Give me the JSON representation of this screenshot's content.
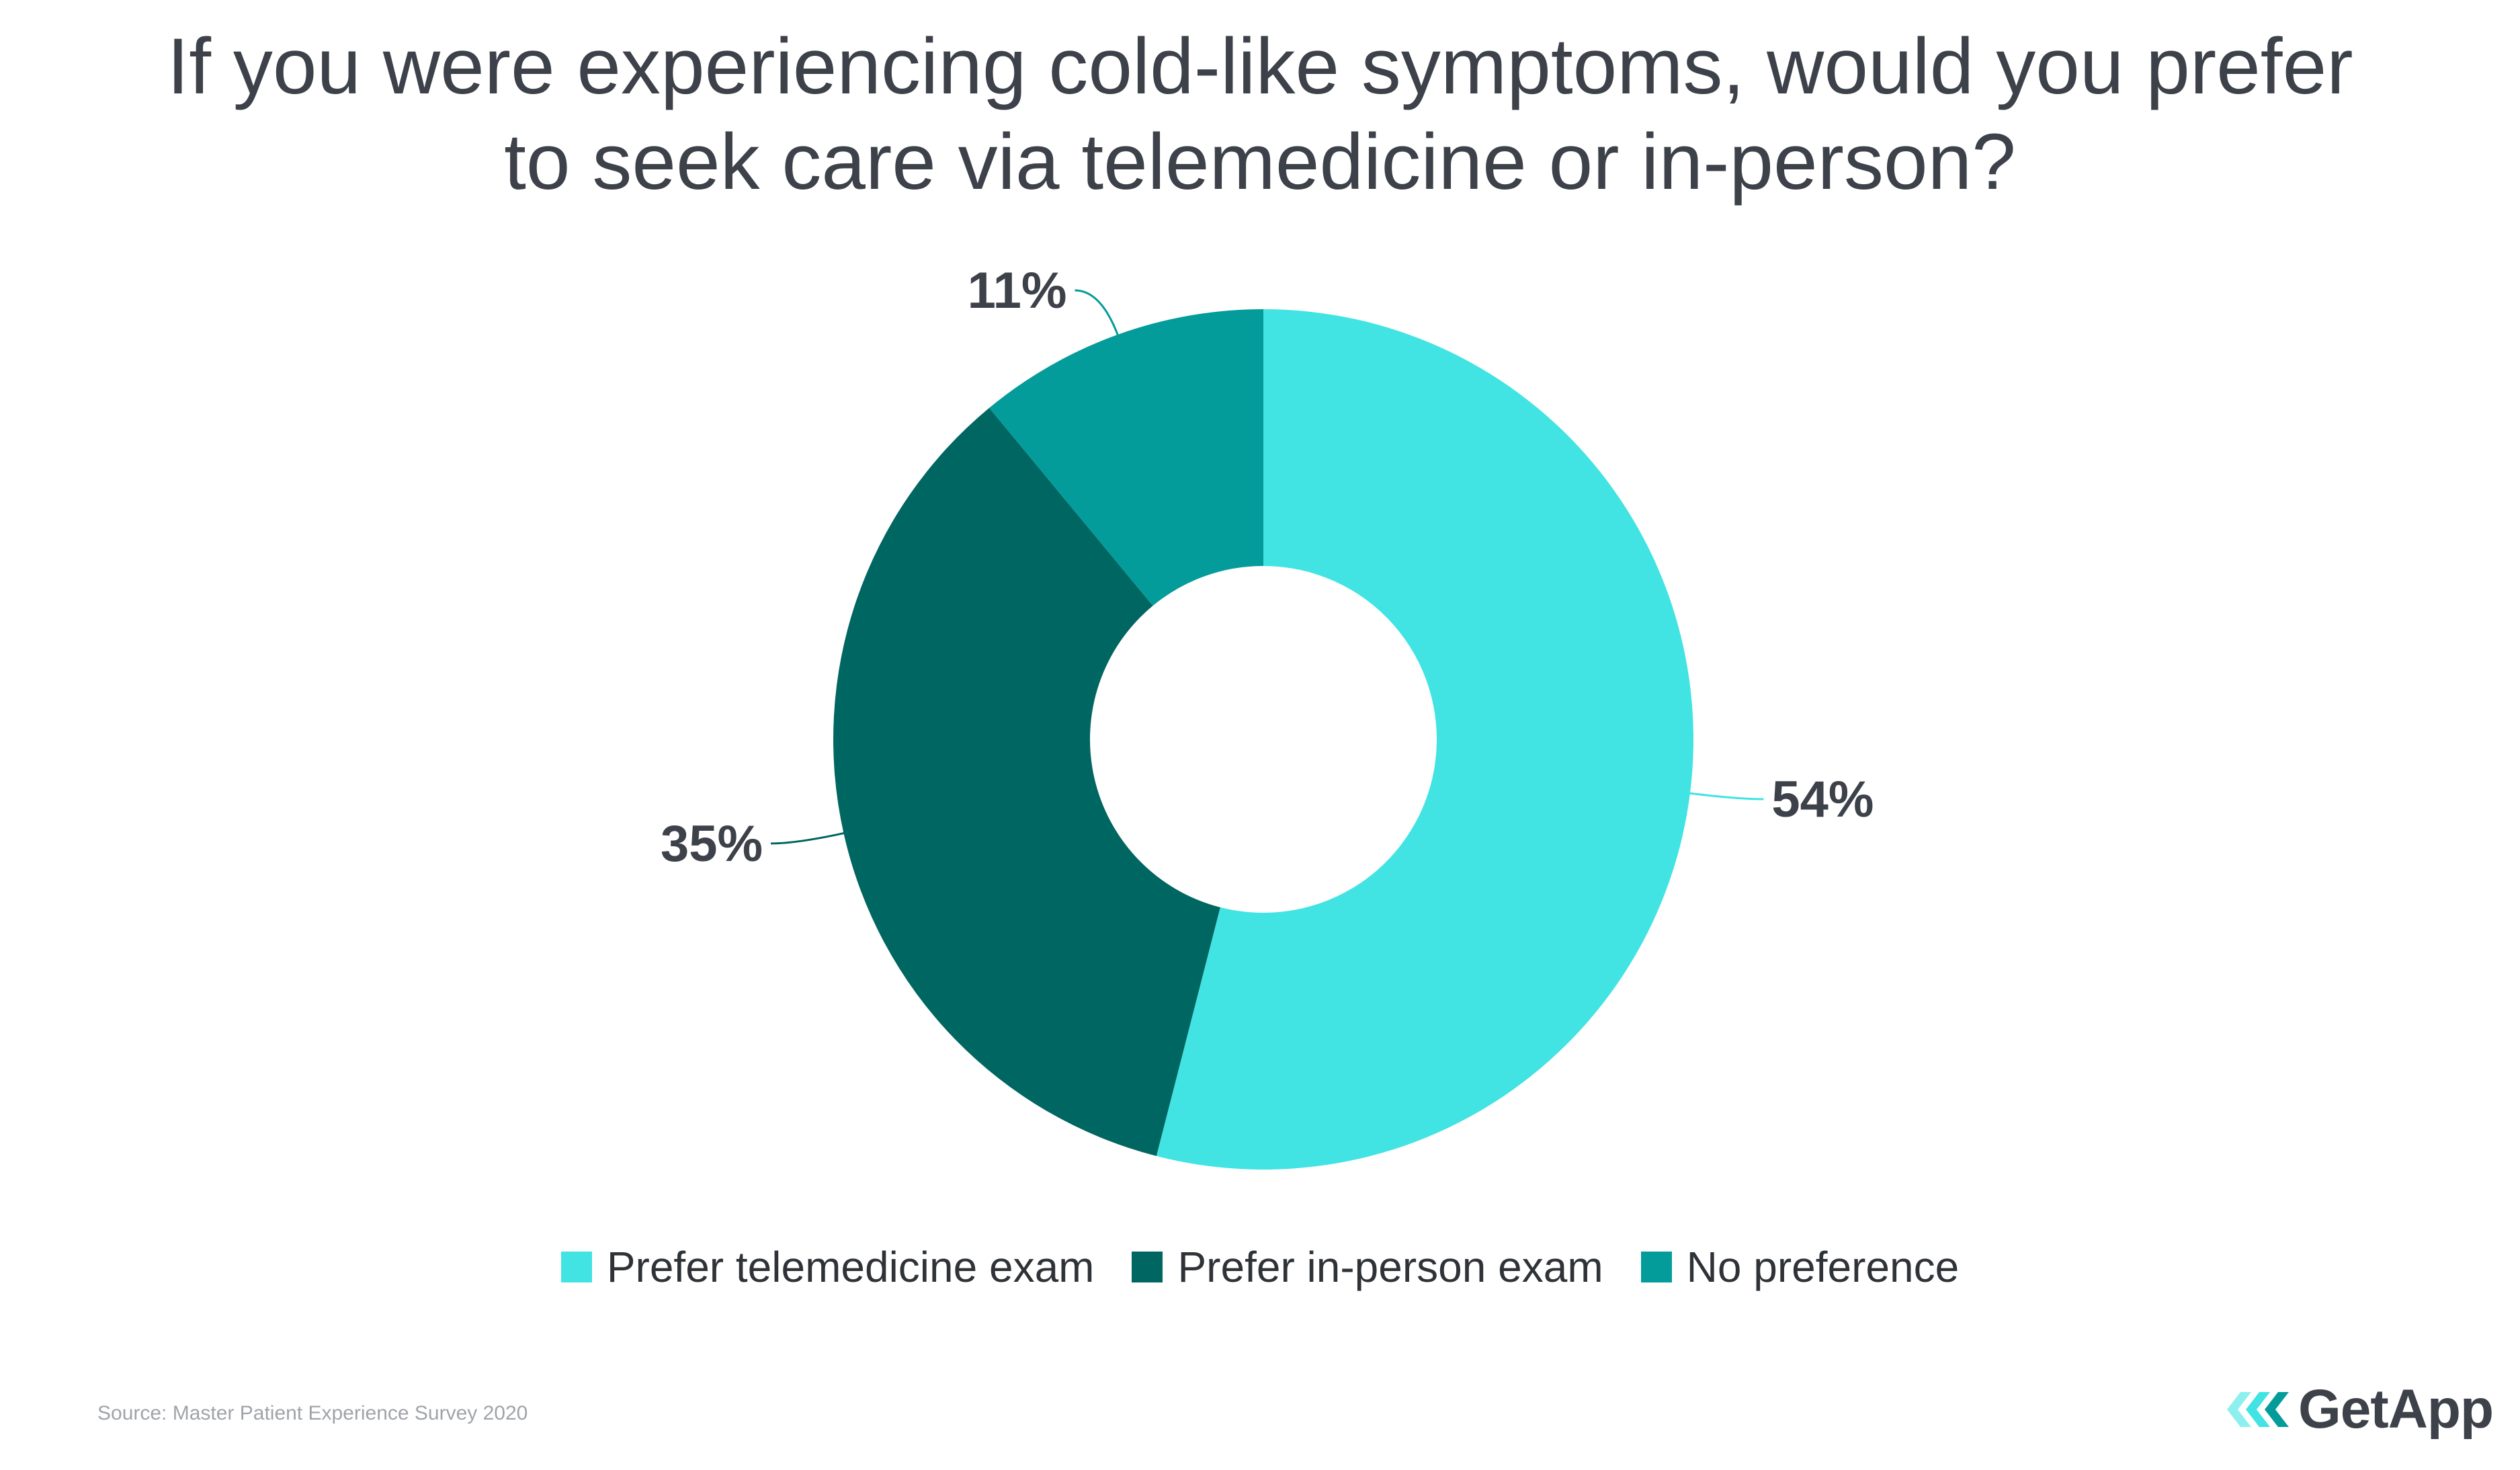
{
  "chart_data": {
    "type": "pie",
    "style": "donut",
    "title_lines": [
      "If you were experiencing cold-like symptoms, would you prefer",
      "to seek care via telemedicine or in-person?"
    ],
    "categories": [
      "Prefer telemedicine exam",
      "Prefer in-person exam",
      "No preference"
    ],
    "values": [
      54,
      35,
      11
    ],
    "value_labels": [
      "54%",
      "35%",
      "11%"
    ],
    "colors": [
      "#42e3e3",
      "#006661",
      "#039c9a"
    ],
    "legend_position": "bottom",
    "source": "Source: Master Patient Experience Survey 2020"
  },
  "brand": {
    "name": "GetApp",
    "icon": "getapp-chevrons-icon",
    "colors": [
      "#8ef0ee",
      "#42e3e3",
      "#039c9a"
    ]
  }
}
